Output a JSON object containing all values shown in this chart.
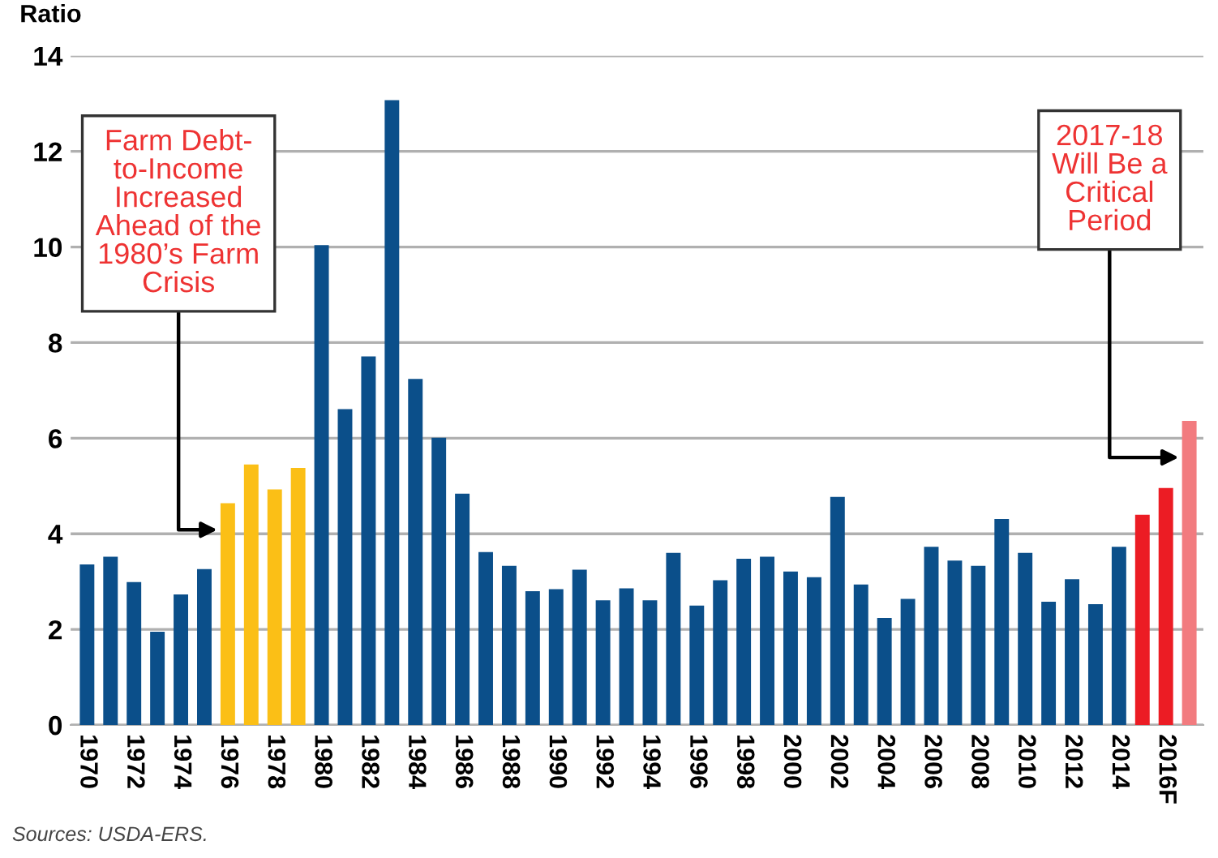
{
  "chart_data": {
    "type": "bar",
    "ylabel": "Ratio",
    "categories": [
      "1970",
      null,
      "1972",
      null,
      "1974",
      null,
      "1976",
      null,
      "1978",
      null,
      "1980",
      null,
      "1982",
      null,
      "1984",
      null,
      "1986",
      null,
      "1988",
      null,
      "1990",
      null,
      "1992",
      null,
      "1994",
      null,
      "1996",
      null,
      "1998",
      null,
      "2000",
      null,
      "2002",
      null,
      "2004",
      null,
      "2006",
      null,
      "2008",
      null,
      "2010",
      null,
      "2012",
      null,
      "2014",
      null,
      "2016F",
      null
    ],
    "values": [
      3.36,
      3.52,
      2.99,
      1.95,
      2.73,
      3.26,
      4.64,
      5.45,
      4.93,
      5.38,
      10.04,
      6.61,
      7.71,
      13.07,
      7.24,
      6.01,
      4.84,
      3.62,
      3.33,
      2.8,
      2.84,
      3.25,
      2.61,
      2.86,
      2.61,
      3.6,
      2.5,
      3.03,
      3.48,
      3.52,
      3.21,
      3.09,
      4.77,
      2.94,
      2.24,
      2.64,
      3.73,
      3.44,
      3.33,
      4.31,
      3.6,
      2.58,
      3.05,
      2.53,
      3.73,
      4.4,
      4.96,
      6.36
    ],
    "colors": [
      "#0b4f8a",
      "#0b4f8a",
      "#0b4f8a",
      "#0b4f8a",
      "#0b4f8a",
      "#0b4f8a",
      "#fbbf16",
      "#fbbf16",
      "#fbbf16",
      "#fbbf16",
      "#0b4f8a",
      "#0b4f8a",
      "#0b4f8a",
      "#0b4f8a",
      "#0b4f8a",
      "#0b4f8a",
      "#0b4f8a",
      "#0b4f8a",
      "#0b4f8a",
      "#0b4f8a",
      "#0b4f8a",
      "#0b4f8a",
      "#0b4f8a",
      "#0b4f8a",
      "#0b4f8a",
      "#0b4f8a",
      "#0b4f8a",
      "#0b4f8a",
      "#0b4f8a",
      "#0b4f8a",
      "#0b4f8a",
      "#0b4f8a",
      "#0b4f8a",
      "#0b4f8a",
      "#0b4f8a",
      "#0b4f8a",
      "#0b4f8a",
      "#0b4f8a",
      "#0b4f8a",
      "#0b4f8a",
      "#0b4f8a",
      "#0b4f8a",
      "#0b4f8a",
      "#0b4f8a",
      "#0b4f8a",
      "#ec1c24",
      "#ec1c24",
      "#f27b7f"
    ],
    "ylim": [
      0,
      14
    ],
    "yticks": [
      0,
      2,
      4,
      6,
      8,
      10,
      12,
      14
    ],
    "grid": "y",
    "annotations": [
      "Farm Debt-\nto-Income\nIncreased\nAhead of the\n1980’s Farm\nCrisis",
      "2017-18\nWill Be a\nCritical\nPeriod",
      "Sources: USDA-ERS."
    ]
  }
}
